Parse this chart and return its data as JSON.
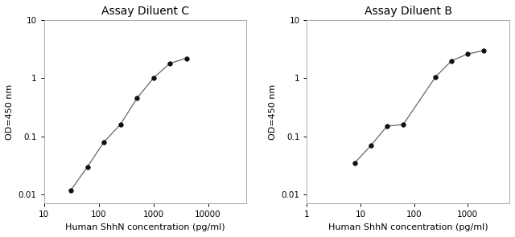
{
  "chart1": {
    "title": "Assay Diluent C",
    "x": [
      31.25,
      62.5,
      125,
      250,
      500,
      1000,
      2000,
      4000
    ],
    "y": [
      0.012,
      0.03,
      0.08,
      0.16,
      0.45,
      1.0,
      1.8,
      2.2
    ],
    "xlim": [
      10,
      50000
    ],
    "ylim": [
      0.007,
      10
    ],
    "xticks": [
      10,
      100,
      1000,
      10000
    ],
    "yticks": [
      0.01,
      0.1,
      1,
      10
    ],
    "ytick_labels": [
      "0.01",
      "0.1",
      "1",
      "10"
    ],
    "xtick_labels": [
      "10",
      "100",
      "1000",
      "10000"
    ],
    "xlabel": "Human ShhN concentration (pg/ml)",
    "ylabel": "OD=450 nm"
  },
  "chart2": {
    "title": "Assay Diluent B",
    "x": [
      7.8,
      15.6,
      31.25,
      62.5,
      250,
      500,
      1000,
      2000
    ],
    "y": [
      0.035,
      0.07,
      0.15,
      0.16,
      1.05,
      2.0,
      2.6,
      3.0
    ],
    "xlim": [
      1,
      6000
    ],
    "ylim": [
      0.007,
      10
    ],
    "xticks": [
      1,
      10,
      100,
      1000
    ],
    "yticks": [
      0.01,
      0.1,
      1,
      10
    ],
    "ytick_labels": [
      "0.01",
      "0.1",
      "1",
      "10"
    ],
    "xtick_labels": [
      "1",
      "10",
      "100",
      "1000"
    ],
    "xlabel": "Human ShhN concentration (pg/ml)",
    "ylabel": "OD=450 nm"
  },
  "line_color": "#666666",
  "marker_color": "#111111",
  "marker_size": 4,
  "line_width": 0.9,
  "bg_color": "#ffffff",
  "title_fontsize": 10,
  "label_fontsize": 8,
  "tick_fontsize": 7.5
}
